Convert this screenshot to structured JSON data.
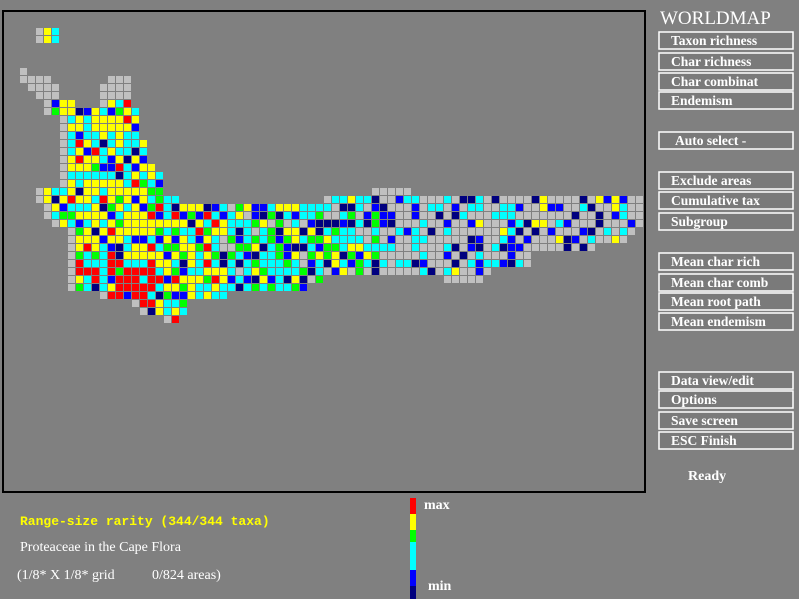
{
  "title": "WORLDMAP",
  "buttons": [
    "Taxon richness",
    "Char richness",
    "Char combinat",
    "Endemism",
    "Auto select   -",
    "Exclude areas",
    "Cumulative tax",
    "Subgroup",
    "Mean char rich",
    "Mean char comb",
    "Mean root path",
    "Mean endemism",
    "Data view/edit",
    "Options",
    "Save screen",
    "ESC Finish"
  ],
  "status": "Ready",
  "map_info": {
    "measure": "Range-size rarity (344/344 taxa)",
    "dataset": "Proteaceae in the Cape Flora",
    "grid": "(1/8* X 1/8* grid",
    "areas": "0/824 areas)"
  },
  "legend": {
    "max": "max",
    "min": "min"
  }
}
